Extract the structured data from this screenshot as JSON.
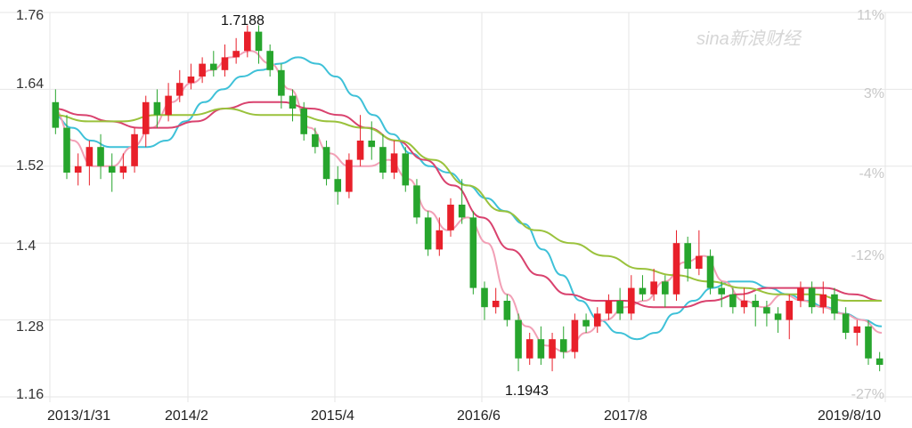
{
  "chart_data": {
    "type": "candlestick",
    "watermark": "sina新浪财经",
    "colors": {
      "up": "#e8202a",
      "down": "#27a52d",
      "ma_cyan": "#3ec1d8",
      "ma_pink": "#f2a0b6",
      "ma_magenta": "#d9426e",
      "ma_olive": "#9ac23c",
      "grid": "#e6e6e6"
    },
    "y_axis": {
      "ticks": [
        "1.76",
        "1.64",
        "1.52",
        "1.4",
        "1.28",
        "1.16"
      ],
      "range": [
        1.16,
        1.76
      ]
    },
    "y_axis_right": {
      "ticks": [
        "11%",
        "3%",
        "-4%",
        "-12%",
        "-27%"
      ],
      "values": [
        11,
        3,
        -4,
        -12,
        -27
      ]
    },
    "x_axis": {
      "ticks": [
        "2013/1/31",
        "2014/2",
        "2015/4",
        "2016/6",
        "2017/8",
        "2019/8/10"
      ]
    },
    "annotations": [
      {
        "label": "1.7188",
        "value": 1.7188,
        "index": 17
      },
      {
        "label": "1.1943",
        "value": 1.1943,
        "index": 44
      }
    ],
    "candles": [
      [
        1.62,
        1.58,
        1.64,
        1.57
      ],
      [
        1.58,
        1.51,
        1.6,
        1.5
      ],
      [
        1.51,
        1.52,
        1.54,
        1.49
      ],
      [
        1.52,
        1.55,
        1.56,
        1.49
      ],
      [
        1.55,
        1.52,
        1.57,
        1.5
      ],
      [
        1.52,
        1.51,
        1.54,
        1.48
      ],
      [
        1.51,
        1.52,
        1.54,
        1.5
      ],
      [
        1.52,
        1.57,
        1.58,
        1.51
      ],
      [
        1.57,
        1.62,
        1.63,
        1.55
      ],
      [
        1.62,
        1.6,
        1.64,
        1.58
      ],
      [
        1.6,
        1.63,
        1.65,
        1.59
      ],
      [
        1.63,
        1.65,
        1.67,
        1.62
      ],
      [
        1.65,
        1.66,
        1.68,
        1.64
      ],
      [
        1.66,
        1.68,
        1.69,
        1.65
      ],
      [
        1.68,
        1.67,
        1.7,
        1.66
      ],
      [
        1.67,
        1.69,
        1.71,
        1.66
      ],
      [
        1.69,
        1.7,
        1.72,
        1.68
      ],
      [
        1.7,
        1.73,
        1.74,
        1.69
      ],
      [
        1.73,
        1.7,
        1.74,
        1.68
      ],
      [
        1.7,
        1.67,
        1.71,
        1.66
      ],
      [
        1.67,
        1.63,
        1.68,
        1.61
      ],
      [
        1.63,
        1.61,
        1.64,
        1.59
      ],
      [
        1.61,
        1.57,
        1.62,
        1.56
      ],
      [
        1.57,
        1.55,
        1.58,
        1.54
      ],
      [
        1.55,
        1.5,
        1.56,
        1.49
      ],
      [
        1.5,
        1.48,
        1.52,
        1.46
      ],
      [
        1.48,
        1.53,
        1.54,
        1.47
      ],
      [
        1.53,
        1.56,
        1.6,
        1.52
      ],
      [
        1.56,
        1.55,
        1.59,
        1.53
      ],
      [
        1.55,
        1.51,
        1.57,
        1.5
      ],
      [
        1.51,
        1.54,
        1.56,
        1.5
      ],
      [
        1.54,
        1.49,
        1.55,
        1.48
      ],
      [
        1.49,
        1.44,
        1.5,
        1.43
      ],
      [
        1.44,
        1.39,
        1.45,
        1.38
      ],
      [
        1.39,
        1.42,
        1.44,
        1.38
      ],
      [
        1.42,
        1.46,
        1.47,
        1.41
      ],
      [
        1.46,
        1.44,
        1.5,
        1.43
      ],
      [
        1.44,
        1.33,
        1.45,
        1.32
      ],
      [
        1.33,
        1.3,
        1.34,
        1.28
      ],
      [
        1.3,
        1.31,
        1.33,
        1.29
      ],
      [
        1.31,
        1.28,
        1.32,
        1.27
      ],
      [
        1.28,
        1.22,
        1.29,
        1.2
      ],
      [
        1.22,
        1.25,
        1.26,
        1.21
      ],
      [
        1.25,
        1.22,
        1.27,
        1.21
      ],
      [
        1.22,
        1.25,
        1.26,
        1.2
      ],
      [
        1.25,
        1.23,
        1.27,
        1.22
      ],
      [
        1.23,
        1.28,
        1.29,
        1.22
      ],
      [
        1.28,
        1.27,
        1.29,
        1.26
      ],
      [
        1.27,
        1.29,
        1.3,
        1.26
      ],
      [
        1.29,
        1.31,
        1.32,
        1.28
      ],
      [
        1.31,
        1.29,
        1.33,
        1.28
      ],
      [
        1.29,
        1.33,
        1.35,
        1.28
      ],
      [
        1.33,
        1.32,
        1.35,
        1.31
      ],
      [
        1.32,
        1.34,
        1.36,
        1.31
      ],
      [
        1.34,
        1.32,
        1.35,
        1.3
      ],
      [
        1.32,
        1.4,
        1.42,
        1.31
      ],
      [
        1.4,
        1.36,
        1.41,
        1.34
      ],
      [
        1.36,
        1.38,
        1.42,
        1.35
      ],
      [
        1.38,
        1.33,
        1.39,
        1.32
      ],
      [
        1.33,
        1.32,
        1.34,
        1.3
      ],
      [
        1.32,
        1.3,
        1.33,
        1.29
      ],
      [
        1.3,
        1.31,
        1.33,
        1.29
      ],
      [
        1.31,
        1.3,
        1.32,
        1.27
      ],
      [
        1.3,
        1.29,
        1.31,
        1.27
      ],
      [
        1.29,
        1.28,
        1.3,
        1.26
      ],
      [
        1.28,
        1.31,
        1.32,
        1.25
      ],
      [
        1.31,
        1.33,
        1.34,
        1.3
      ],
      [
        1.33,
        1.3,
        1.34,
        1.29
      ],
      [
        1.3,
        1.32,
        1.34,
        1.29
      ],
      [
        1.32,
        1.29,
        1.33,
        1.28
      ],
      [
        1.29,
        1.26,
        1.3,
        1.25
      ],
      [
        1.26,
        1.27,
        1.28,
        1.24
      ],
      [
        1.27,
        1.22,
        1.28,
        1.21
      ],
      [
        1.22,
        1.21,
        1.23,
        1.2
      ]
    ],
    "moving_averages": [
      {
        "color_key": "ma_cyan",
        "values": [
          1.6,
          1.58,
          1.56,
          1.55,
          1.55,
          1.55,
          1.56,
          1.59,
          1.62,
          1.64,
          1.66,
          1.67,
          1.68,
          1.69,
          1.68,
          1.66,
          1.63,
          1.6,
          1.57,
          1.54,
          1.52,
          1.51,
          1.49,
          1.47,
          1.45,
          1.43,
          1.39,
          1.35,
          1.31,
          1.28,
          1.26,
          1.25,
          1.26,
          1.29,
          1.31,
          1.33,
          1.34,
          1.34,
          1.33,
          1.32,
          1.31,
          1.3,
          1.29,
          1.28,
          1.27
        ]
      },
      {
        "color_key": "ma_pink",
        "values": [
          1.61,
          1.56,
          1.52,
          1.52,
          1.55,
          1.58,
          1.62,
          1.65,
          1.67,
          1.69,
          1.7,
          1.68,
          1.64,
          1.58,
          1.54,
          1.52,
          1.52,
          1.53,
          1.5,
          1.45,
          1.42,
          1.44,
          1.4,
          1.32,
          1.27,
          1.24,
          1.23,
          1.26,
          1.28,
          1.3,
          1.31,
          1.34,
          1.37,
          1.38,
          1.34,
          1.31,
          1.3,
          1.32,
          1.31,
          1.3,
          1.29,
          1.28,
          1.26
        ]
      },
      {
        "color_key": "ma_magenta",
        "values": [
          1.61,
          1.6,
          1.59,
          1.58,
          1.58,
          1.59,
          1.61,
          1.62,
          1.62,
          1.61,
          1.6,
          1.58,
          1.56,
          1.53,
          1.49,
          1.44,
          1.39,
          1.35,
          1.32,
          1.31,
          1.31,
          1.3,
          1.3,
          1.31,
          1.32,
          1.33,
          1.33,
          1.33,
          1.32,
          1.31
        ]
      },
      {
        "color_key": "ma_olive",
        "values": [
          1.6,
          1.59,
          1.59,
          1.6,
          1.6,
          1.61,
          1.6,
          1.6,
          1.59,
          1.58,
          1.56,
          1.53,
          1.49,
          1.45,
          1.42,
          1.4,
          1.38,
          1.36,
          1.35,
          1.34,
          1.33,
          1.32,
          1.32,
          1.31,
          1.31
        ]
      }
    ]
  }
}
